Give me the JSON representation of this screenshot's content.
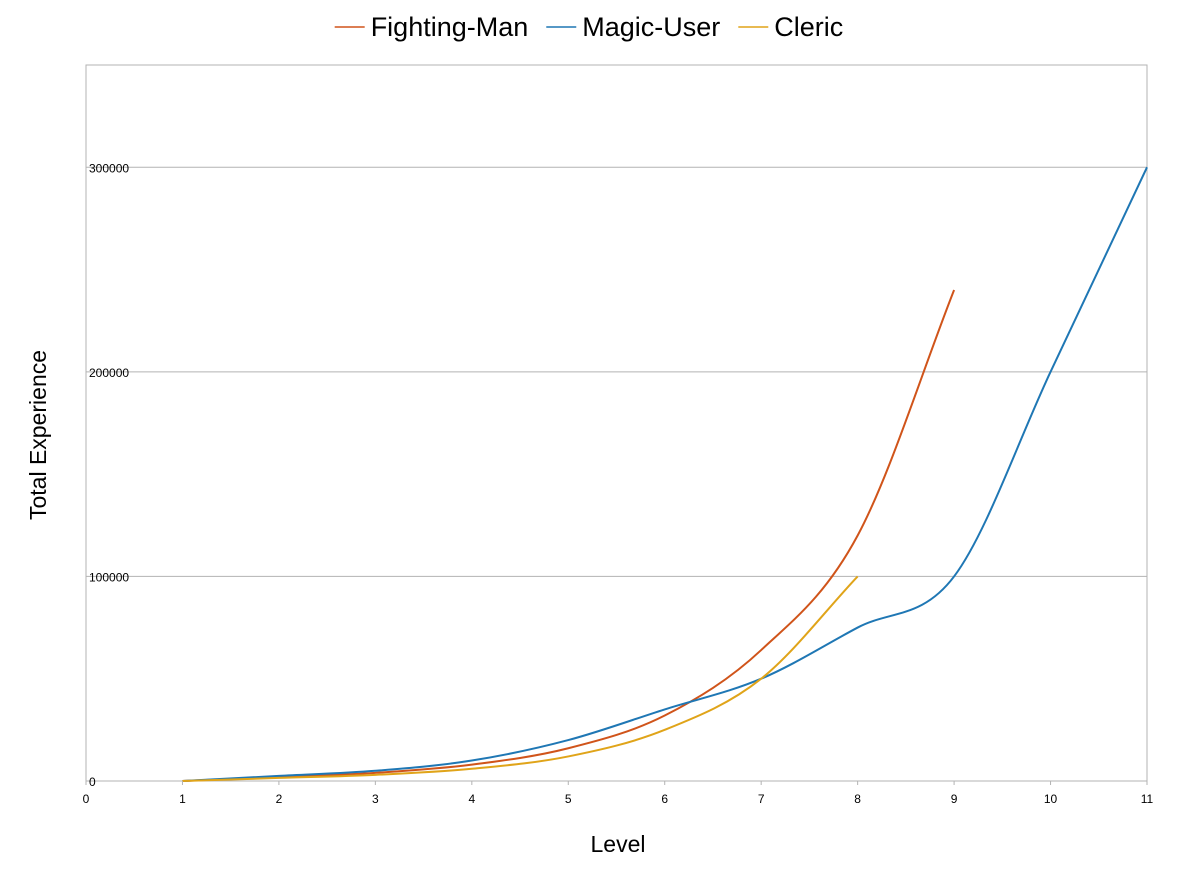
{
  "chart_data": {
    "type": "line",
    "xlabel": "Level",
    "ylabel": "Total Experience",
    "xlim": [
      0,
      11
    ],
    "ylim": [
      0,
      350000
    ],
    "x_ticks": [
      0,
      1,
      2,
      3,
      4,
      5,
      6,
      7,
      8,
      9,
      10,
      11
    ],
    "y_ticks": [
      0,
      100000,
      200000,
      300000
    ],
    "x_tick_labels": [
      "0",
      "1",
      "2",
      "3",
      "4",
      "5",
      "6",
      "7",
      "8",
      "9",
      "10",
      "11"
    ],
    "y_tick_labels": [
      "0",
      "100000",
      "200000",
      "300000"
    ],
    "grid": "horizontal",
    "legend_position": "top",
    "series": [
      {
        "name": "Fighting-Man",
        "color": "#d0541a",
        "x": [
          1,
          2,
          3,
          4,
          5,
          6,
          7,
          8,
          9
        ],
        "values": [
          0,
          2000,
          4000,
          8000,
          16000,
          32000,
          64000,
          120000,
          240000
        ]
      },
      {
        "name": "Magic-User",
        "color": "#1f77b4",
        "x": [
          1,
          2,
          3,
          4,
          5,
          6,
          7,
          8,
          9,
          10,
          11
        ],
        "values": [
          0,
          2500,
          5000,
          10000,
          20000,
          35000,
          50000,
          75000,
          100000,
          200000,
          300000
        ]
      },
      {
        "name": "Cleric",
        "color": "#e0a419",
        "x": [
          1,
          2,
          3,
          4,
          5,
          6,
          7,
          8
        ],
        "values": [
          0,
          1500,
          3000,
          6000,
          12000,
          25000,
          50000,
          100000
        ]
      }
    ]
  }
}
